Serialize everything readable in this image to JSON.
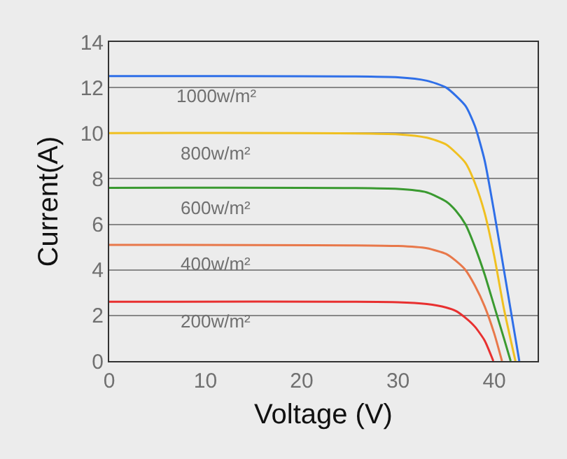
{
  "chart_data": {
    "type": "line",
    "xlabel": "Voltage (V)",
    "ylabel": "Current(A)",
    "xlim": [
      0,
      44.5
    ],
    "ylim": [
      0,
      14
    ],
    "xticks": [
      0,
      10,
      20,
      30,
      40
    ],
    "yticks": [
      0,
      2,
      4,
      6,
      8,
      10,
      12,
      14
    ],
    "grid": "y",
    "legend": false,
    "marker": "none",
    "line_style": "solid",
    "series": [
      {
        "name": "1000w/m²",
        "color": "#2f6fe8",
        "x": [
          0,
          30,
          33,
          35,
          37,
          38,
          39,
          40,
          41,
          42,
          42.6
        ],
        "values": [
          12.5,
          12.45,
          12.3,
          12.0,
          11.2,
          10.3,
          8.8,
          6.5,
          4.0,
          1.5,
          0
        ]
      },
      {
        "name": "800w/m²",
        "color": "#f0c020",
        "x": [
          0,
          30,
          33,
          35,
          37,
          38,
          39,
          40,
          41,
          42.2
        ],
        "values": [
          10.0,
          9.95,
          9.8,
          9.5,
          8.7,
          7.8,
          6.5,
          4.6,
          2.3,
          0
        ]
      },
      {
        "name": "600w/m²",
        "color": "#3a9a30",
        "x": [
          0,
          30,
          33,
          35,
          36,
          37,
          38,
          39,
          40,
          41,
          41.7
        ],
        "values": [
          7.6,
          7.55,
          7.4,
          7.0,
          6.6,
          6.0,
          5.0,
          3.8,
          2.4,
          1.0,
          0
        ]
      },
      {
        "name": "400w/m²",
        "color": "#e8784a",
        "x": [
          0,
          30,
          33,
          35,
          36,
          37,
          38,
          39,
          40,
          40.8
        ],
        "values": [
          5.1,
          5.05,
          4.95,
          4.7,
          4.4,
          4.0,
          3.3,
          2.4,
          1.2,
          0
        ]
      },
      {
        "name": "200w/m²",
        "color": "#e83030",
        "x": [
          0,
          30,
          33,
          35,
          36,
          37,
          38,
          39,
          39.9
        ],
        "values": [
          2.6,
          2.58,
          2.5,
          2.35,
          2.2,
          1.9,
          1.5,
          0.9,
          0
        ]
      }
    ]
  }
}
